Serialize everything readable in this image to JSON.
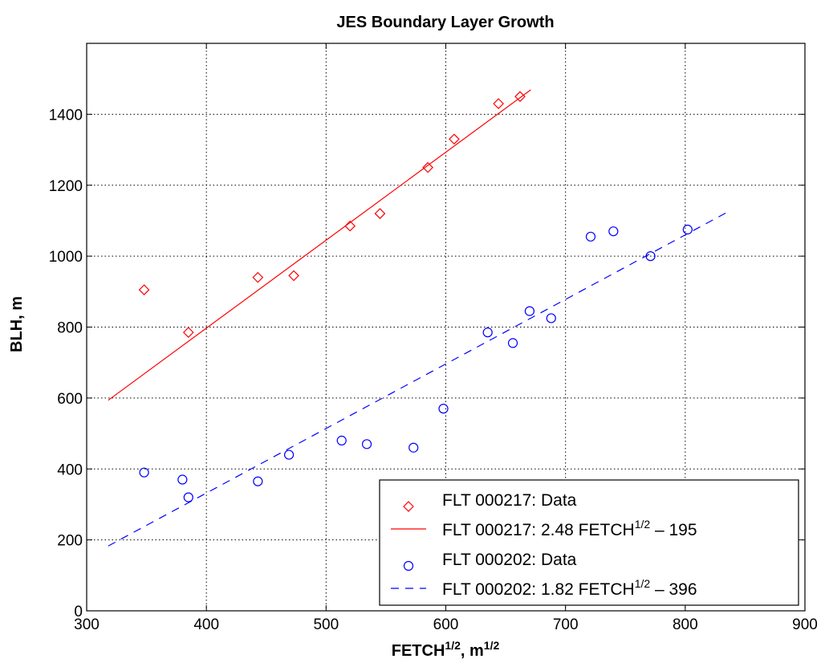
{
  "chart_data": {
    "type": "scatter",
    "title": "JES Boundary Layer Growth",
    "xlabel": {
      "base": "FETCH",
      "sup": "1/2",
      "sep": ", m",
      "unit_sup": "1/2"
    },
    "ylabel": "BLH, m",
    "xlim": [
      300,
      900
    ],
    "ylim": [
      0,
      1600
    ],
    "xticks": [
      300,
      400,
      500,
      600,
      700,
      800,
      900
    ],
    "yticks": [
      0,
      200,
      400,
      600,
      800,
      1000,
      1200,
      1400
    ],
    "grid": true,
    "legend_position": "bottom-right",
    "series": [
      {
        "name": "FLT 000217: Data",
        "kind": "points",
        "marker": "diamond",
        "color": "#ff0000",
        "points": [
          [
            348,
            905
          ],
          [
            385,
            785
          ],
          [
            443,
            940
          ],
          [
            473,
            945
          ],
          [
            520,
            1085
          ],
          [
            545,
            1120
          ],
          [
            585,
            1250
          ],
          [
            607,
            1330
          ],
          [
            644,
            1430
          ],
          [
            662,
            1450
          ]
        ]
      },
      {
        "name": "FLT 000217: 2.48 FETCH^1/2 – 195",
        "legend": {
          "pre": "FLT 000217: 2.48 FETCH",
          "sup": "1/2",
          "post": " – 195"
        },
        "kind": "line",
        "style": "solid",
        "color": "#ff0000",
        "slope": 2.48,
        "intercept": -195,
        "x_range": [
          318,
          671
        ]
      },
      {
        "name": "FLT 000202: Data",
        "kind": "points",
        "marker": "circle",
        "color": "#0000ff",
        "points": [
          [
            348,
            390
          ],
          [
            380,
            370
          ],
          [
            385,
            320
          ],
          [
            443,
            365
          ],
          [
            469,
            440
          ],
          [
            513,
            480
          ],
          [
            534,
            470
          ],
          [
            573,
            460
          ],
          [
            598,
            570
          ],
          [
            635,
            785
          ],
          [
            656,
            755
          ],
          [
            670,
            845
          ],
          [
            688,
            825
          ],
          [
            721,
            1055
          ],
          [
            740,
            1070
          ],
          [
            771,
            1000
          ],
          [
            802,
            1075
          ]
        ]
      },
      {
        "name": "FLT 000202: 1.82 FETCH^1/2 – 396",
        "legend": {
          "pre": "FLT 000202: 1.82 FETCH",
          "sup": "1/2",
          "post": " – 396"
        },
        "kind": "line",
        "style": "dashed",
        "color": "#0000ff",
        "slope": 1.82,
        "intercept": -396,
        "x_range": [
          318,
          835
        ]
      }
    ]
  }
}
